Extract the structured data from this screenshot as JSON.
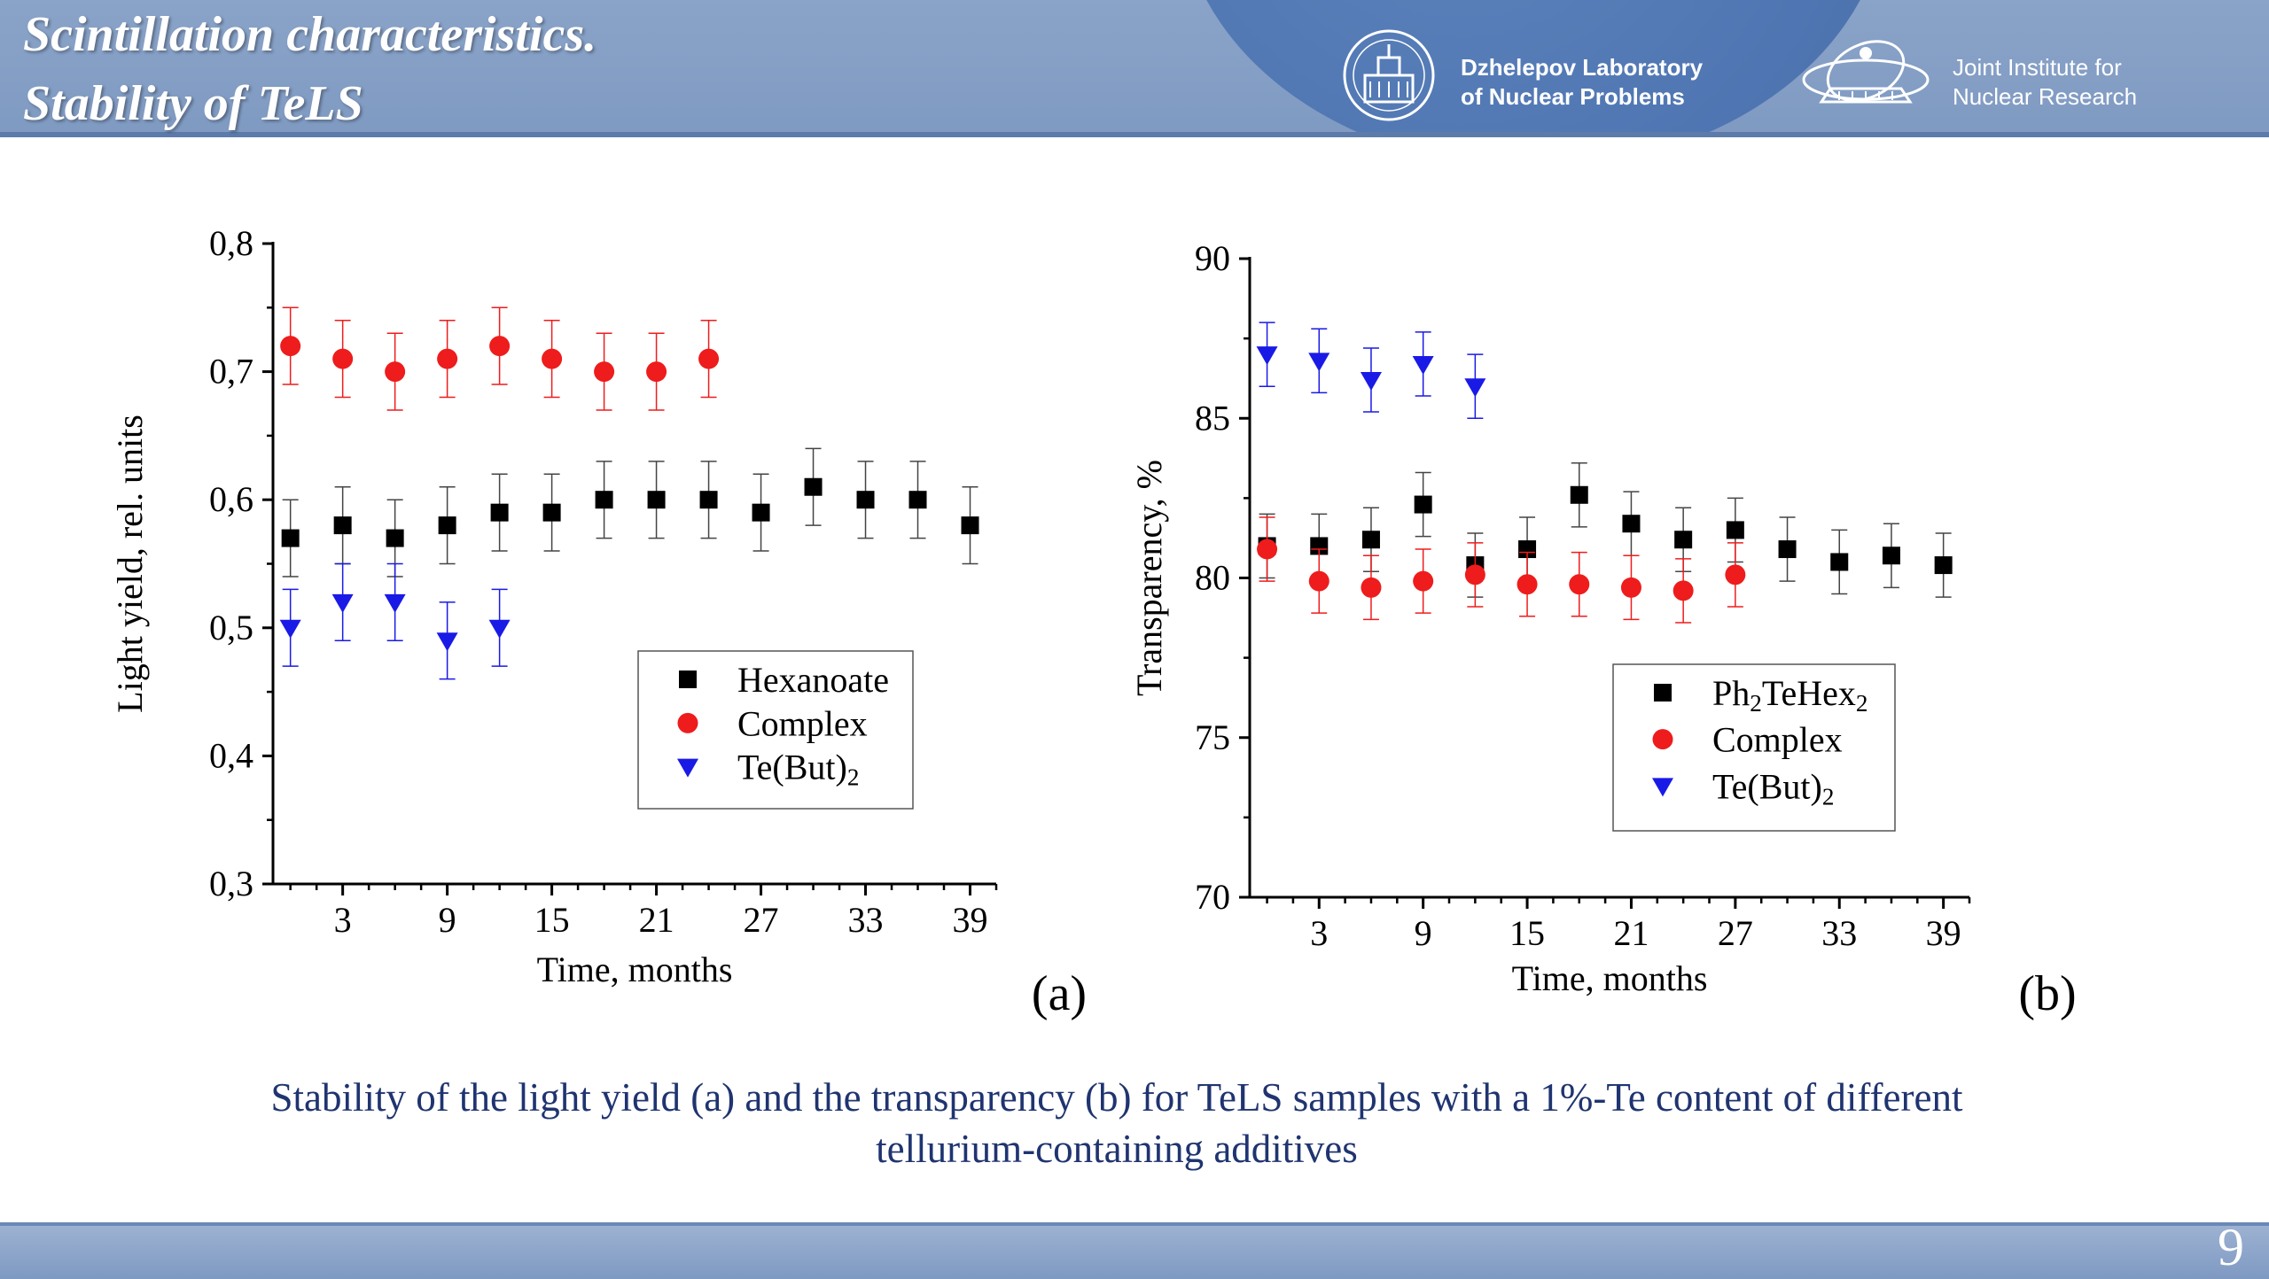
{
  "header": {
    "title_line1": "Scintillation characteristics.",
    "title_line2": "Stability of TeLS",
    "org1_line1": "Dzhelepov Laboratory",
    "org1_line2": "of Nuclear Problems",
    "org2_line1": "Joint Institute for",
    "org2_line2": "Nuclear Research"
  },
  "chart_data": [
    {
      "type": "scatter",
      "panel_label": "(a)",
      "xlabel": "Time, months",
      "ylabel": "Light yield, rel. units",
      "xlim": [
        -1,
        40.5
      ],
      "ylim": [
        0.3,
        0.8
      ],
      "xticks": [
        3,
        9,
        15,
        21,
        27,
        33,
        39
      ],
      "yticks": [
        0.3,
        0.4,
        0.5,
        0.6,
        0.7,
        0.8
      ],
      "ytick_labels": [
        "0,3",
        "0,4",
        "0,5",
        "0,6",
        "0,7",
        "0,8"
      ],
      "legend_position": "center-right",
      "series": [
        {
          "name": "Hexanoate",
          "marker": "square",
          "color": "#000000",
          "x": [
            0,
            3,
            6,
            9,
            12,
            15,
            18,
            21,
            24,
            27,
            30,
            33,
            36,
            39
          ],
          "y": [
            0.57,
            0.58,
            0.57,
            0.58,
            0.59,
            0.59,
            0.6,
            0.6,
            0.6,
            0.59,
            0.61,
            0.6,
            0.6,
            0.58
          ],
          "err": 0.03
        },
        {
          "name": "Complex",
          "marker": "circle",
          "color": "#ee1c1c",
          "x": [
            0,
            3,
            6,
            9,
            12,
            15,
            18,
            21,
            24
          ],
          "y": [
            0.72,
            0.71,
            0.7,
            0.71,
            0.72,
            0.71,
            0.7,
            0.7,
            0.71
          ],
          "err": 0.03
        },
        {
          "name": "Te(But)",
          "name_sub": "2",
          "marker": "triangle-down",
          "color": "#1a1ae6",
          "x": [
            0,
            3,
            6,
            9,
            12
          ],
          "y": [
            0.5,
            0.52,
            0.52,
            0.49,
            0.5
          ],
          "err": 0.03
        }
      ]
    },
    {
      "type": "scatter",
      "panel_label": "(b)",
      "xlabel": "Time, months",
      "ylabel": "Transparency, %",
      "xlim": [
        -1,
        40.5
      ],
      "ylim": [
        70,
        90
      ],
      "xticks": [
        3,
        9,
        15,
        21,
        27,
        33,
        39
      ],
      "yticks": [
        70,
        75,
        80,
        85,
        90
      ],
      "ytick_labels": [
        "70",
        "75",
        "80",
        "85",
        "90"
      ],
      "legend_position": "bottom-right",
      "series": [
        {
          "name": "Ph",
          "name_sub": "2",
          "name_mid": "TeHex",
          "name_sub2": "2",
          "marker": "square",
          "color": "#000000",
          "x": [
            0,
            3,
            6,
            9,
            12,
            15,
            18,
            21,
            24,
            27,
            30,
            33,
            36,
            39
          ],
          "y": [
            81.0,
            81.0,
            81.2,
            82.3,
            80.4,
            80.9,
            82.6,
            81.7,
            81.2,
            81.5,
            80.9,
            80.5,
            80.7,
            80.4
          ],
          "err": 1.0
        },
        {
          "name": "Complex",
          "marker": "circle",
          "color": "#ee1c1c",
          "x": [
            0,
            3,
            6,
            9,
            12,
            15,
            18,
            21,
            24,
            27
          ],
          "y": [
            80.9,
            79.9,
            79.7,
            79.9,
            80.1,
            79.8,
            79.8,
            79.7,
            79.6,
            80.1
          ],
          "err": 1.0
        },
        {
          "name": "Te(But)",
          "name_sub": "2",
          "marker": "triangle-down",
          "color": "#1a1ae6",
          "x": [
            0,
            3,
            6,
            9,
            12
          ],
          "y": [
            87.0,
            86.8,
            86.2,
            86.7,
            86.0
          ],
          "err": 1.0
        }
      ]
    }
  ],
  "caption": {
    "line1": "Stability of the light yield (a) and the transparency (b) for TeLS samples with a 1%-Te content of different",
    "line2": "tellurium-containing additives"
  },
  "footer": {
    "page_number": "9"
  }
}
